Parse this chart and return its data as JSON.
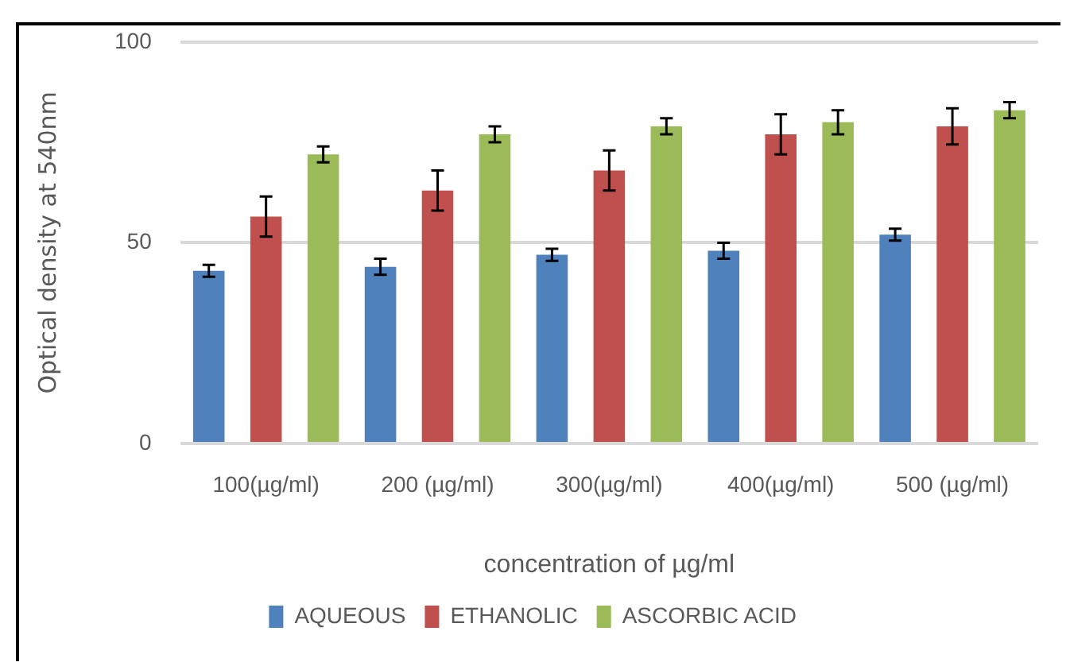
{
  "chart_data": {
    "type": "bar",
    "xlabel": "concentration of µg/ml",
    "ylabel": "Optical density at 540nm",
    "categories": [
      "100(µg/ml)",
      "200 (µg/ml)",
      "300(µg/ml)",
      "400(µg/ml)",
      "500 (µg/ml)"
    ],
    "series": [
      {
        "name": "AQUEOUS",
        "color": "#4f81bd",
        "values": [
          43,
          44,
          47,
          48,
          52
        ],
        "errors": [
          1.5,
          2,
          1.5,
          2,
          1.5
        ]
      },
      {
        "name": "ETHANOLIC",
        "color": "#c0504d",
        "values": [
          56.5,
          63,
          68,
          77,
          79
        ],
        "errors": [
          5,
          5,
          5,
          5,
          4.5
        ]
      },
      {
        "name": "ASCORBIC ACID",
        "color": "#9bbb59",
        "values": [
          72,
          77,
          79,
          80,
          83
        ],
        "errors": [
          2,
          2,
          2,
          3,
          2
        ]
      }
    ],
    "ylim": [
      0,
      100
    ],
    "yticks": [
      0,
      50,
      100
    ],
    "grid": "y",
    "legend": "bottom"
  }
}
